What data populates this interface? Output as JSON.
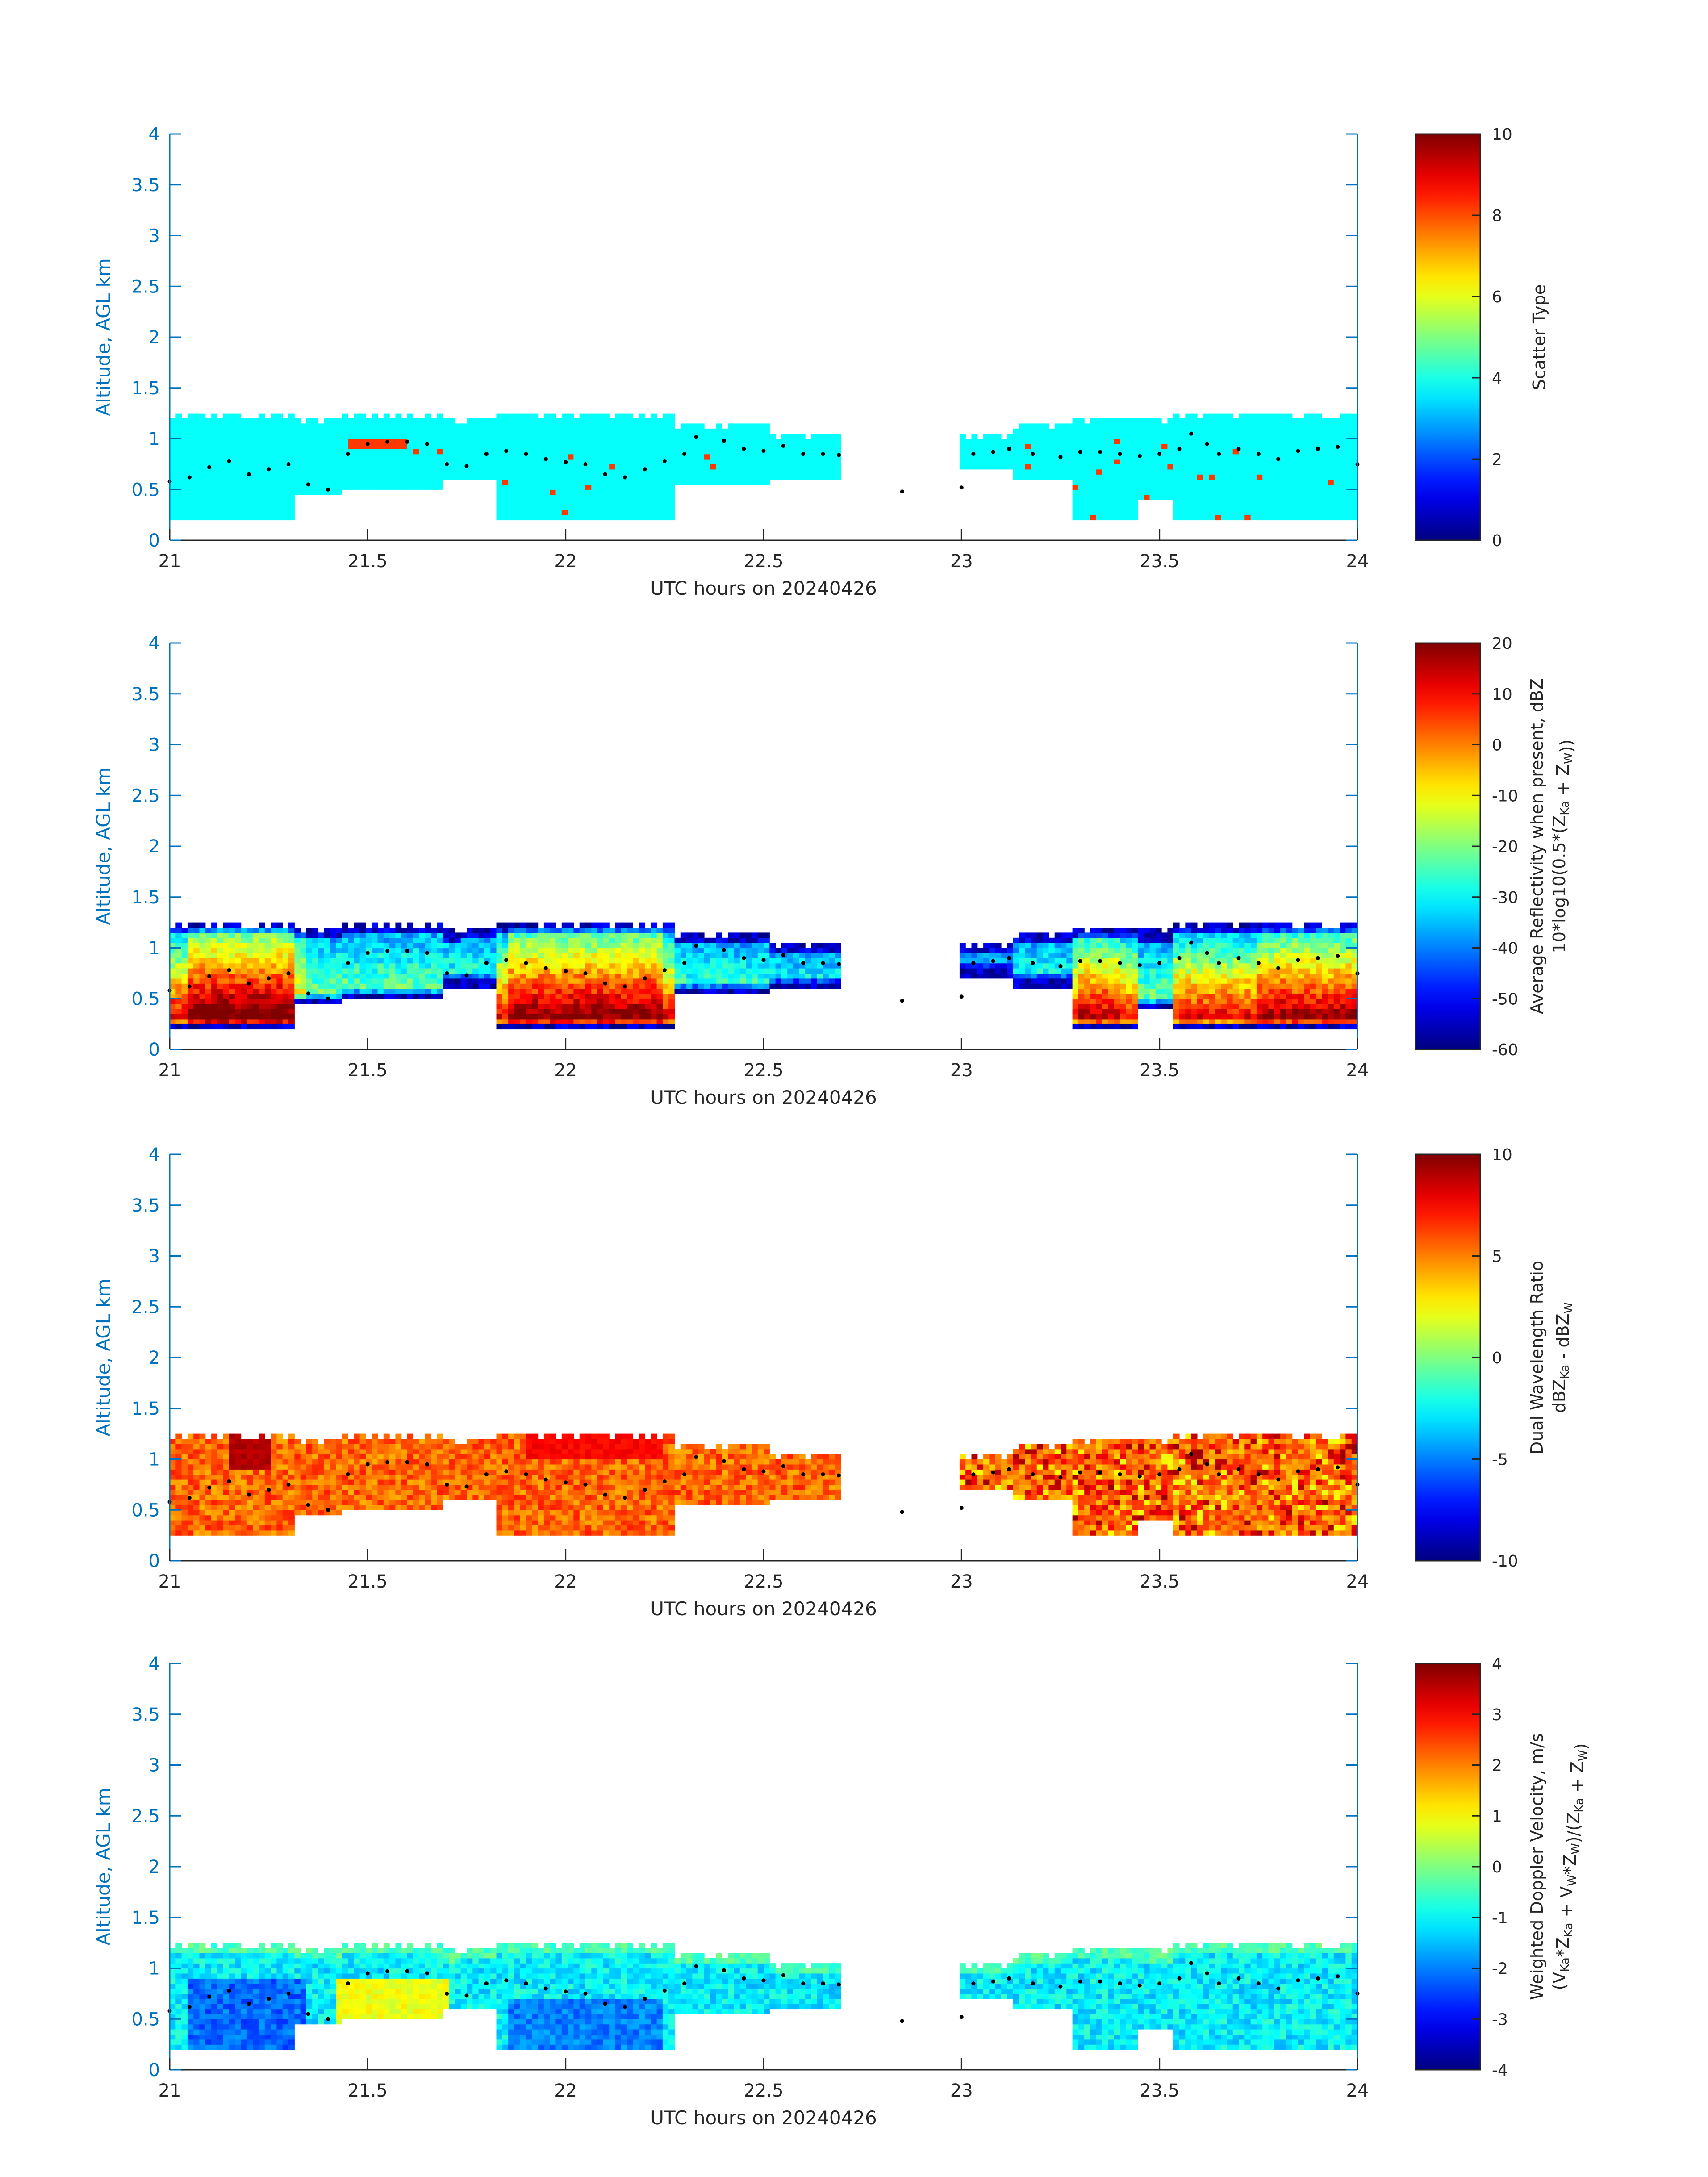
{
  "chart_data": [
    {
      "type": "heatmap",
      "xlabel": "UTC hours on 20240426",
      "ylabel": "Altitude, AGL km",
      "xlim": [
        21,
        24
      ],
      "ylim": [
        0,
        4
      ],
      "xticks": [
        "21",
        "21.5",
        "22",
        "22.5",
        "23",
        "23.5",
        "24"
      ],
      "yticks": [
        "0",
        "0.5",
        "1",
        "1.5",
        "2",
        "2.5",
        "3",
        "3.5",
        "4"
      ],
      "colorbar": {
        "label_line1": "Scatter Type",
        "label_line2": "",
        "range": [
          0,
          10
        ],
        "ticks": [
          "0",
          "2",
          "4",
          "6",
          "8",
          "10"
        ],
        "colormap": "jet"
      },
      "field": "scatter_type",
      "cloud_value": 3.8,
      "precip_value": 8.2
    },
    {
      "type": "heatmap",
      "xlabel": "UTC hours on 20240426",
      "ylabel": "Altitude, AGL km",
      "xlim": [
        21,
        24
      ],
      "ylim": [
        0,
        4
      ],
      "xticks": [
        "21",
        "21.5",
        "22",
        "22.5",
        "23",
        "23.5",
        "24"
      ],
      "yticks": [
        "0",
        "0.5",
        "1",
        "1.5",
        "2",
        "2.5",
        "3",
        "3.5",
        "4"
      ],
      "colorbar": {
        "label_line1": "Average Reflectivity when present, dBZ",
        "label_line2": "10*log10(0.5*(Z_Ka + Z_W))",
        "range": [
          -60,
          20
        ],
        "ticks": [
          "-60",
          "-50",
          "-40",
          "-30",
          "-20",
          "-10",
          "0",
          "10",
          "20"
        ],
        "colormap": "jet"
      },
      "field": "reflectivity"
    },
    {
      "type": "heatmap",
      "xlabel": "UTC hours on 20240426",
      "ylabel": "Altitude, AGL km",
      "xlim": [
        21,
        24
      ],
      "ylim": [
        0,
        4
      ],
      "xticks": [
        "21",
        "21.5",
        "22",
        "22.5",
        "23",
        "23.5",
        "24"
      ],
      "yticks": [
        "0",
        "0.5",
        "1",
        "1.5",
        "2",
        "2.5",
        "3",
        "3.5",
        "4"
      ],
      "colorbar": {
        "label_line1": "Dual Wavelength Ratio",
        "label_line2": "dBZ_Ka - dBZ_W",
        "range": [
          -10,
          10
        ],
        "ticks": [
          "-10",
          "-5",
          "0",
          "5",
          "10"
        ],
        "colormap": "jet"
      },
      "field": "dwr"
    },
    {
      "type": "heatmap",
      "xlabel": "UTC hours on 20240426",
      "ylabel": "Altitude, AGL km",
      "xlim": [
        21,
        24
      ],
      "ylim": [
        0,
        4
      ],
      "xticks": [
        "21",
        "21.5",
        "22",
        "22.5",
        "23",
        "23.5",
        "24"
      ],
      "yticks": [
        "0",
        "0.5",
        "1",
        "1.5",
        "2",
        "2.5",
        "3",
        "3.5",
        "4"
      ],
      "colorbar": {
        "label_line1": "Weighted Doppler Velocity, m/s",
        "label_line2": "(V_Ka*Z_Ka + V_W*Z_W)/(Z_Ka + Z_W)",
        "range": [
          -4,
          4
        ],
        "ticks": [
          "-4",
          "-3",
          "-2",
          "-1",
          "0",
          "1",
          "2",
          "3",
          "4"
        ],
        "colormap": "jet"
      },
      "field": "velocity"
    }
  ],
  "cloud_segments": [
    {
      "t0": 21.0,
      "t1": 21.31,
      "base": 0.18,
      "top": 1.27
    },
    {
      "t0": 21.31,
      "t1": 21.43,
      "base": 0.45,
      "top": 1.22
    },
    {
      "t0": 21.43,
      "t1": 21.69,
      "base": 0.5,
      "top": 1.25
    },
    {
      "t0": 21.69,
      "t1": 21.74,
      "base": 0.62,
      "top": 1.18
    },
    {
      "t0": 21.74,
      "t1": 21.82,
      "base": 0.62,
      "top": 1.22
    },
    {
      "t0": 21.82,
      "t1": 22.28,
      "base": 0.18,
      "top": 1.25
    },
    {
      "t0": 22.28,
      "t1": 22.52,
      "base": 0.55,
      "top": 1.15
    },
    {
      "t0": 22.52,
      "t1": 22.69,
      "base": 0.6,
      "top": 1.05
    },
    {
      "t0": 23.0,
      "t1": 23.13,
      "base": 0.72,
      "top": 1.05
    },
    {
      "t0": 23.13,
      "t1": 23.28,
      "base": 0.62,
      "top": 1.15
    },
    {
      "t0": 23.28,
      "t1": 23.45,
      "base": 0.18,
      "top": 1.22
    },
    {
      "t0": 23.45,
      "t1": 23.54,
      "base": 0.4,
      "top": 1.18
    },
    {
      "t0": 23.54,
      "t1": 23.8,
      "base": 0.18,
      "top": 1.25
    },
    {
      "t0": 23.8,
      "t1": 24.0,
      "base": 0.18,
      "top": 1.27
    }
  ],
  "cloud_top_height": [
    {
      "t": 21.0,
      "h": 0.58
    },
    {
      "t": 21.05,
      "h": 0.62
    },
    {
      "t": 21.1,
      "h": 0.72
    },
    {
      "t": 21.15,
      "h": 0.78
    },
    {
      "t": 21.2,
      "h": 0.65
    },
    {
      "t": 21.25,
      "h": 0.7
    },
    {
      "t": 21.3,
      "h": 0.75
    },
    {
      "t": 21.35,
      "h": 0.55
    },
    {
      "t": 21.4,
      "h": 0.5
    },
    {
      "t": 21.45,
      "h": 0.85
    },
    {
      "t": 21.5,
      "h": 0.95
    },
    {
      "t": 21.55,
      "h": 0.97
    },
    {
      "t": 21.6,
      "h": 0.97
    },
    {
      "t": 21.65,
      "h": 0.95
    },
    {
      "t": 21.7,
      "h": 0.75
    },
    {
      "t": 21.75,
      "h": 0.73
    },
    {
      "t": 21.8,
      "h": 0.85
    },
    {
      "t": 21.85,
      "h": 0.88
    },
    {
      "t": 21.9,
      "h": 0.85
    },
    {
      "t": 21.95,
      "h": 0.8
    },
    {
      "t": 22.0,
      "h": 0.77
    },
    {
      "t": 22.05,
      "h": 0.75
    },
    {
      "t": 22.1,
      "h": 0.65
    },
    {
      "t": 22.15,
      "h": 0.62
    },
    {
      "t": 22.2,
      "h": 0.7
    },
    {
      "t": 22.25,
      "h": 0.78
    },
    {
      "t": 22.3,
      "h": 0.85
    },
    {
      "t": 22.33,
      "h": 1.02
    },
    {
      "t": 22.4,
      "h": 0.98
    },
    {
      "t": 22.45,
      "h": 0.9
    },
    {
      "t": 22.5,
      "h": 0.88
    },
    {
      "t": 22.55,
      "h": 0.93
    },
    {
      "t": 22.6,
      "h": 0.85
    },
    {
      "t": 22.65,
      "h": 0.85
    },
    {
      "t": 22.69,
      "h": 0.84
    },
    {
      "t": 22.85,
      "h": 0.48
    },
    {
      "t": 23.0,
      "h": 0.52
    },
    {
      "t": 23.03,
      "h": 0.85
    },
    {
      "t": 23.08,
      "h": 0.87
    },
    {
      "t": 23.12,
      "h": 0.9
    },
    {
      "t": 23.18,
      "h": 0.85
    },
    {
      "t": 23.25,
      "h": 0.82
    },
    {
      "t": 23.3,
      "h": 0.87
    },
    {
      "t": 23.35,
      "h": 0.87
    },
    {
      "t": 23.4,
      "h": 0.85
    },
    {
      "t": 23.45,
      "h": 0.83
    },
    {
      "t": 23.5,
      "h": 0.85
    },
    {
      "t": 23.55,
      "h": 0.9
    },
    {
      "t": 23.58,
      "h": 1.05
    },
    {
      "t": 23.62,
      "h": 0.95
    },
    {
      "t": 23.65,
      "h": 0.85
    },
    {
      "t": 23.7,
      "h": 0.9
    },
    {
      "t": 23.75,
      "h": 0.85
    },
    {
      "t": 23.8,
      "h": 0.8
    },
    {
      "t": 23.85,
      "h": 0.88
    },
    {
      "t": 23.9,
      "h": 0.9
    },
    {
      "t": 23.95,
      "h": 0.92
    },
    {
      "t": 24.0,
      "h": 0.75
    }
  ]
}
